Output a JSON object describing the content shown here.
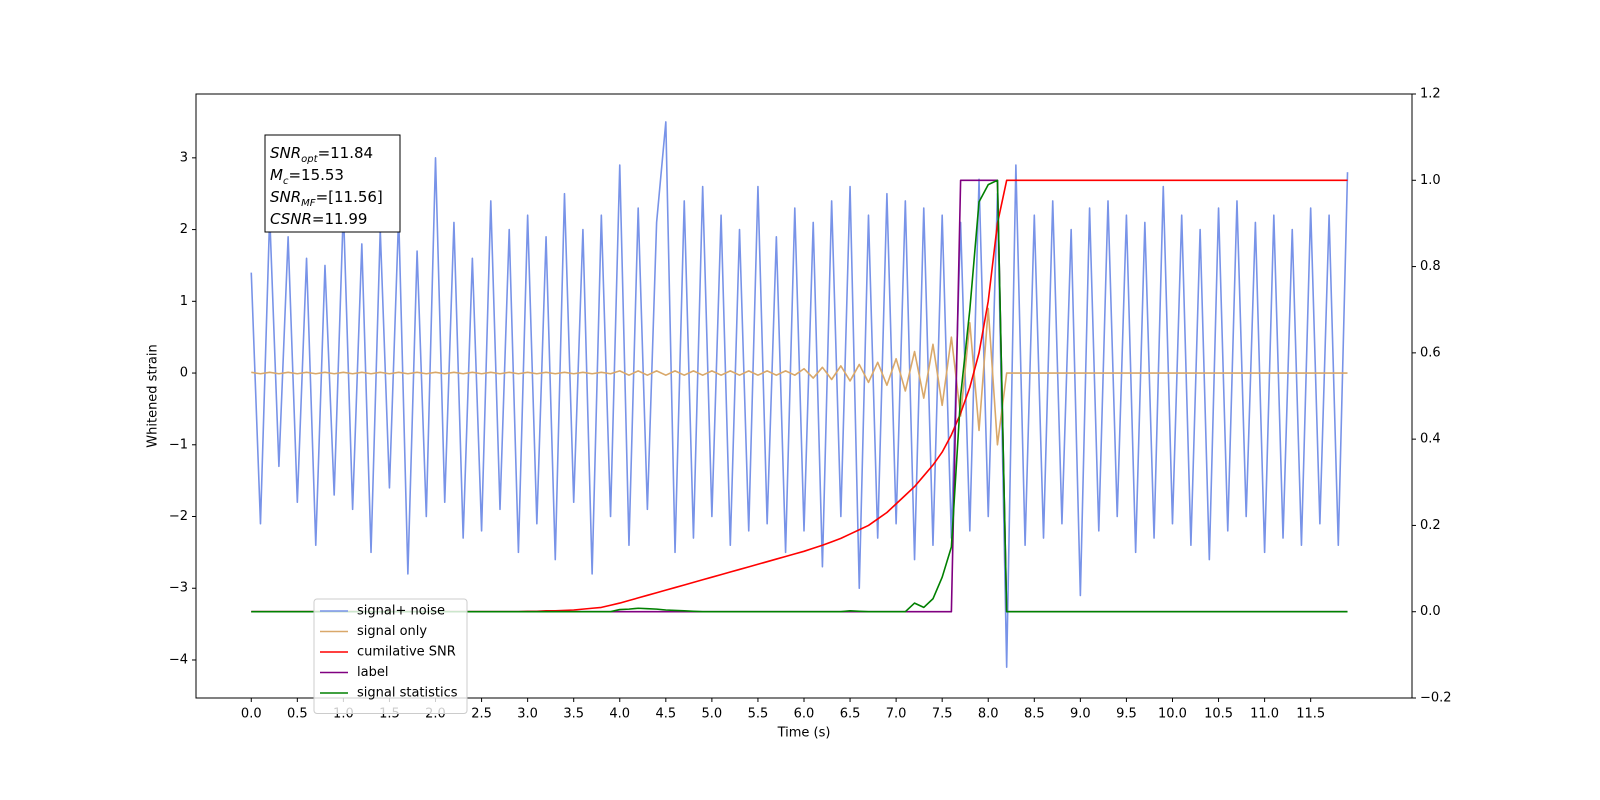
{
  "chart_data": {
    "type": "line",
    "xlabel": "Time (s)",
    "ylabel": "Whitened strain",
    "annotations": [
      {
        "main": "SNR",
        "sub": "opt",
        "text": "=11.84"
      },
      {
        "main": "M",
        "sub": "c",
        "text": "=15.53"
      },
      {
        "main": "SNR",
        "sub": "MF",
        "text": "=[11.56]"
      },
      {
        "main": "CSNR",
        "sub": "",
        "text": "=11.99"
      }
    ],
    "legend": "lower left",
    "xlim": [
      -0.6,
      12.6
    ],
    "ylim": [
      -4.53,
      3.89
    ],
    "y2lim": [
      -0.2,
      1.2
    ],
    "xticks": [
      {
        "value": 0,
        "label": "0.0"
      },
      0.5,
      {
        "value": 1,
        "label": "1.0"
      },
      1.5,
      {
        "value": 2,
        "label": "2.0"
      },
      2.5,
      {
        "value": 3,
        "label": "3.0"
      },
      3.5,
      {
        "value": 4,
        "label": "4.0"
      },
      4.5,
      {
        "value": 5,
        "label": "5.0"
      },
      5.5,
      {
        "value": 6,
        "label": "6.0"
      },
      6.5,
      {
        "value": 7,
        "label": "7.0"
      },
      7.5,
      {
        "value": 8,
        "label": "8.0"
      },
      8.5,
      {
        "value": 9,
        "label": "9.0"
      },
      9.5,
      {
        "value": 10,
        "label": "10.0"
      },
      10.5,
      {
        "value": 11,
        "label": "11.0"
      },
      11.5
    ],
    "yticks": [
      {
        "value": -4,
        "label": "−4"
      },
      {
        "value": -3,
        "label": "−3"
      },
      {
        "value": -2,
        "label": "−2"
      },
      {
        "value": -1,
        "label": "−1"
      },
      0,
      1,
      2,
      3
    ],
    "y2ticks": [
      {
        "value": -0.2,
        "label": "−0.2"
      },
      {
        "value": 0,
        "label": "0.0"
      },
      0.2,
      0.4,
      0.6,
      0.8,
      {
        "value": 1,
        "label": "1.0"
      },
      1.2
    ],
    "x": [
      0,
      0.1,
      0.2,
      0.3,
      0.4,
      0.5,
      0.6,
      0.7,
      0.8,
      0.9,
      1,
      1.1,
      1.2,
      1.3,
      1.4,
      1.5,
      1.6,
      1.7,
      1.8,
      1.9,
      2,
      2.1,
      2.2,
      2.3,
      2.4,
      2.5,
      2.6,
      2.7,
      2.8,
      2.9,
      3,
      3.1,
      3.2,
      3.3,
      3.4,
      3.5,
      3.6,
      3.7,
      3.8,
      3.9,
      4,
      4.1,
      4.2,
      4.3,
      4.4,
      4.5,
      4.6,
      4.7,
      4.8,
      4.9,
      5,
      5.1,
      5.2,
      5.3,
      5.4,
      5.5,
      5.6,
      5.7,
      5.8,
      5.9,
      6,
      6.1,
      6.2,
      6.3,
      6.4,
      6.5,
      6.6,
      6.7,
      6.8,
      6.9,
      7,
      7.1,
      7.2,
      7.3,
      7.4,
      7.5,
      7.6,
      7.7,
      7.8,
      7.9,
      8,
      8.1,
      8.2,
      8.3,
      8.4,
      8.5,
      8.6,
      8.7,
      8.8,
      8.9,
      9,
      9.1,
      9.2,
      9.3,
      9.4,
      9.5,
      9.6,
      9.7,
      9.8,
      9.9,
      10,
      10.1,
      10.2,
      10.3,
      10.4,
      10.5,
      10.6,
      10.7,
      10.8,
      10.9,
      11,
      11.1,
      11.2,
      11.3,
      11.4,
      11.5,
      11.6,
      11.7,
      11.8,
      11.9
    ],
    "series": [
      {
        "name": "signal+ noise",
        "color": "#7893e8",
        "values": [
          1.4,
          -2.1,
          2.2,
          -1.3,
          1.9,
          -1.8,
          1.6,
          -2.4,
          1.5,
          -1.7,
          2.3,
          -1.9,
          1.8,
          -2.5,
          2.0,
          -1.6,
          2.2,
          -2.8,
          1.7,
          -2.0,
          3.0,
          -1.8,
          2.1,
          -2.3,
          1.6,
          -2.2,
          2.4,
          -1.9,
          2.0,
          -2.5,
          2.2,
          -2.1,
          1.9,
          -2.6,
          2.5,
          -1.8,
          2.0,
          -2.8,
          2.2,
          -2.0,
          2.9,
          -2.4,
          2.3,
          -1.9,
          2.1,
          3.5,
          -2.5,
          2.4,
          -2.3,
          2.6,
          -2.0,
          2.2,
          -2.4,
          2.0,
          -2.2,
          2.6,
          -2.1,
          1.9,
          -2.5,
          2.3,
          -2.2,
          2.1,
          -2.7,
          2.4,
          -2.0,
          2.6,
          -3.0,
          2.2,
          -2.3,
          2.5,
          -2.1,
          2.4,
          -2.6,
          2.3,
          -2.4,
          2.2,
          -2.3,
          2.1,
          -2.2,
          2.7,
          -2.0,
          2.5,
          -4.1,
          2.9,
          -2.4,
          2.2,
          -2.3,
          2.4,
          -2.1,
          2.0,
          -3.1,
          2.3,
          -2.2,
          2.4,
          -2.0,
          2.2,
          -2.5,
          2.1,
          -2.3,
          2.6,
          -2.1,
          2.2,
          -2.4,
          2.0,
          -2.6,
          2.3,
          -2.2,
          2.4,
          -2.0,
          2.1,
          -2.5,
          2.2,
          -2.3,
          2.0,
          -2.4,
          2.3,
          -2.1,
          2.2,
          -2.4,
          2.8
        ]
      },
      {
        "name": "signal only",
        "color": "#d9a86a",
        "values": [
          0.01,
          -0.01,
          0.01,
          -0.01,
          0.01,
          -0.01,
          0.01,
          -0.01,
          0.01,
          -0.01,
          0.01,
          -0.01,
          0.01,
          -0.01,
          0.01,
          -0.01,
          0.01,
          -0.01,
          0.01,
          -0.01,
          0.01,
          -0.01,
          0.01,
          -0.01,
          0.01,
          -0.01,
          0.01,
          -0.01,
          0.01,
          -0.01,
          0.01,
          -0.01,
          0.01,
          -0.01,
          0.01,
          -0.01,
          0.01,
          -0.01,
          0.01,
          -0.01,
          0.03,
          -0.03,
          0.03,
          -0.03,
          0.03,
          -0.03,
          0.03,
          -0.03,
          0.03,
          -0.03,
          0.03,
          -0.03,
          0.03,
          -0.03,
          0.03,
          -0.03,
          0.03,
          -0.03,
          0.03,
          -0.03,
          0.06,
          -0.07,
          0.08,
          -0.09,
          0.1,
          -0.11,
          0.12,
          -0.13,
          0.15,
          -0.17,
          0.2,
          -0.25,
          0.3,
          -0.35,
          0.4,
          -0.45,
          0.5,
          -0.6,
          0.7,
          -0.8,
          0.9,
          -1.0,
          0,
          0,
          0,
          0,
          0,
          0,
          0,
          0,
          0,
          0,
          0,
          0,
          0,
          0,
          0,
          0,
          0,
          0,
          0,
          0,
          0,
          0,
          0,
          0,
          0,
          0,
          0,
          0,
          0,
          0,
          0,
          0,
          0,
          0,
          0,
          0,
          0,
          0
        ]
      },
      {
        "name": "cumilative SNR",
        "color": "#ff0000",
        "axis": "y2",
        "values": [
          0,
          0,
          0,
          0,
          0,
          0,
          0,
          0,
          0,
          0,
          0,
          0,
          0,
          0,
          0,
          0,
          0,
          0,
          0,
          0,
          0,
          0,
          0,
          0,
          0,
          0,
          0,
          0,
          0,
          0,
          0.001,
          0.001,
          0.002,
          0.002,
          0.003,
          0.004,
          0.006,
          0.008,
          0.01,
          0.015,
          0.02,
          0.026,
          0.032,
          0.038,
          0.044,
          0.05,
          0.056,
          0.062,
          0.068,
          0.074,
          0.08,
          0.086,
          0.092,
          0.098,
          0.104,
          0.11,
          0.116,
          0.122,
          0.128,
          0.134,
          0.14,
          0.147,
          0.154,
          0.162,
          0.17,
          0.18,
          0.19,
          0.2,
          0.215,
          0.23,
          0.25,
          0.27,
          0.29,
          0.315,
          0.34,
          0.37,
          0.41,
          0.46,
          0.52,
          0.6,
          0.72,
          0.9,
          1,
          1,
          1,
          1,
          1,
          1,
          1,
          1,
          1,
          1,
          1,
          1,
          1,
          1,
          1,
          1,
          1,
          1,
          1,
          1,
          1,
          1,
          1,
          1,
          1,
          1,
          1,
          1,
          1,
          1,
          1,
          1,
          1,
          1,
          1,
          1,
          1,
          1
        ]
      },
      {
        "name": "label",
        "color": "#800080",
        "axis": "y2",
        "values": [
          0,
          0,
          0,
          0,
          0,
          0,
          0,
          0,
          0,
          0,
          0,
          0,
          0,
          0,
          0,
          0,
          0,
          0,
          0,
          0,
          0,
          0,
          0,
          0,
          0,
          0,
          0,
          0,
          0,
          0,
          0,
          0,
          0,
          0,
          0,
          0,
          0,
          0,
          0,
          0,
          0,
          0,
          0,
          0,
          0,
          0,
          0,
          0,
          0,
          0,
          0,
          0,
          0,
          0,
          0,
          0,
          0,
          0,
          0,
          0,
          0,
          0,
          0,
          0,
          0,
          0,
          0,
          0,
          0,
          0,
          0,
          0,
          0,
          0,
          0,
          0,
          0,
          1,
          1,
          1,
          1,
          1,
          0,
          0,
          0,
          0,
          0,
          0,
          0,
          0,
          0,
          0,
          0,
          0,
          0,
          0,
          0,
          0,
          0,
          0,
          0,
          0,
          0,
          0,
          0,
          0,
          0,
          0,
          0,
          0,
          0,
          0,
          0,
          0,
          0,
          0,
          0,
          0,
          0,
          0
        ]
      },
      {
        "name": "signal statistics",
        "color": "#008000",
        "axis": "y2",
        "values": [
          0,
          0,
          0,
          0,
          0,
          0,
          0,
          0,
          0,
          0,
          0,
          0,
          0,
          0,
          0,
          0,
          0,
          0,
          0,
          0,
          0,
          0,
          0,
          0,
          0,
          0,
          0,
          0,
          0,
          0,
          0,
          0,
          0,
          0,
          0,
          0,
          0,
          0,
          0,
          0,
          0.005,
          0.006,
          0.008,
          0.007,
          0.006,
          0.004,
          0.003,
          0.002,
          0.001,
          0,
          0,
          0,
          0,
          0,
          0,
          0,
          0,
          0,
          0,
          0,
          0,
          0,
          0,
          0,
          0,
          0.002,
          0.001,
          0,
          0,
          0,
          0,
          0,
          0.02,
          0.01,
          0.03,
          0.08,
          0.15,
          0.5,
          0.7,
          0.95,
          0.99,
          1.0,
          0,
          0,
          0,
          0,
          0,
          0,
          0,
          0,
          0,
          0,
          0,
          0,
          0,
          0,
          0,
          0,
          0,
          0,
          0,
          0,
          0,
          0,
          0,
          0,
          0,
          0,
          0,
          0,
          0,
          0,
          0,
          0,
          0,
          0,
          0,
          0,
          0,
          0
        ]
      }
    ]
  }
}
